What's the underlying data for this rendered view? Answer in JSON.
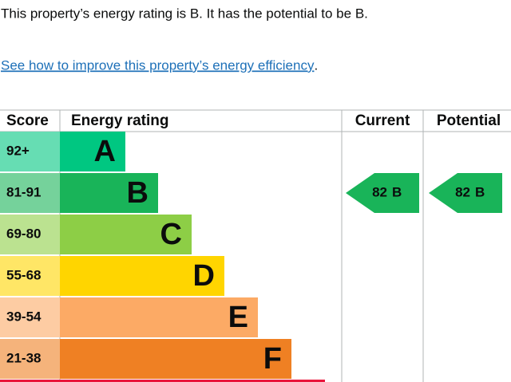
{
  "intro": {
    "text": "This property’s energy rating is B. It has the potential to be B."
  },
  "link": {
    "text": "See how to improve this property’s energy efficiency",
    "after": "."
  },
  "table": {
    "headers": [
      "Score",
      "Energy rating",
      "Current",
      "Potential"
    ],
    "rows": [
      {
        "score": "92+",
        "band": "A"
      },
      {
        "score": "81-91",
        "band": "B"
      },
      {
        "score": "69-80",
        "band": "C"
      },
      {
        "score": "55-68",
        "band": "D"
      },
      {
        "score": "39-54",
        "band": "E"
      },
      {
        "score": "21-38",
        "band": "F"
      }
    ],
    "current": {
      "score": "82",
      "band": "B"
    },
    "potential": {
      "score": "82",
      "band": "B"
    }
  }
}
